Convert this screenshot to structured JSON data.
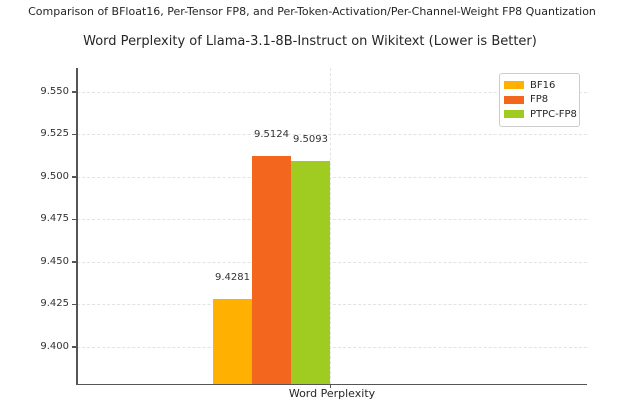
{
  "suptitle": "Comparison of BFloat16, Per-Tensor FP8, and Per-Token-Activation/Per-Channel-Weight FP8 Quantization",
  "chart_data": {
    "type": "bar",
    "title": "Word Perplexity of Llama-3.1-8B-Instruct on Wikitext (Lower is Better)",
    "categories": [
      "Word Perplexity"
    ],
    "series": [
      {
        "name": "BF16",
        "values": [
          9.4281
        ],
        "label": "9.4281",
        "color": "#FFB000"
      },
      {
        "name": "FP8",
        "values": [
          9.5124
        ],
        "label": "9.5124",
        "color": "#F2661E"
      },
      {
        "name": "PTPC-FP8",
        "values": [
          9.5093
        ],
        "label": "9.5093",
        "color": "#A0CB21"
      }
    ],
    "xlabel": "Word Perplexity",
    "ylabel": "",
    "yticks": [
      9.4,
      9.425,
      9.45,
      9.475,
      9.5,
      9.525,
      9.55
    ],
    "ytick_labels": [
      "9.400",
      "9.425",
      "9.450",
      "9.475",
      "9.500",
      "9.525",
      "9.550"
    ],
    "ylim": [
      9.3782,
      9.5641
    ],
    "grid": true,
    "grid_style": "dashed",
    "legend": {
      "position": "upper right",
      "entries": [
        "BF16",
        "FP8",
        "PTPC-FP8"
      ]
    }
  },
  "colors": {
    "background": "#ffffff",
    "spine": "#555555",
    "grid": "#e3e3e3",
    "text": "#262626",
    "tick_text": "#333333"
  }
}
